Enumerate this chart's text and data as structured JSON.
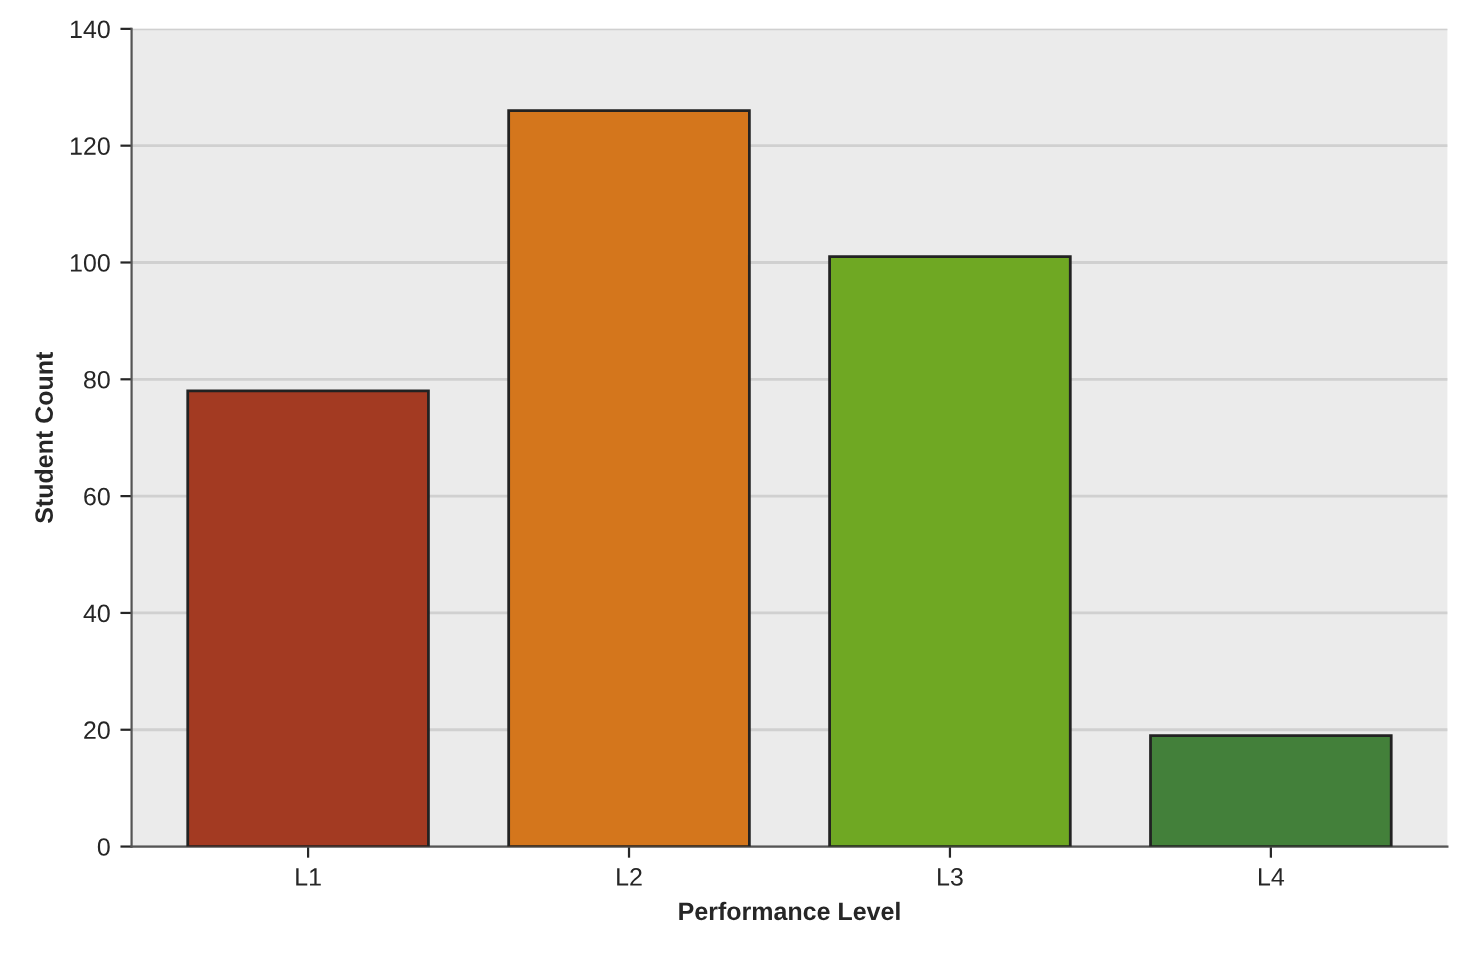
{
  "chart_data": {
    "type": "bar",
    "xlabel": "Performance Level",
    "ylabel": "Student Count",
    "categories": [
      "L1",
      "L2",
      "L3",
      "L4"
    ],
    "values": [
      78,
      126,
      101,
      19
    ],
    "colors": [
      "#a33a22",
      "#d4761c",
      "#6fa823",
      "#43803a"
    ],
    "ylim": [
      0,
      140
    ],
    "yticks": [
      0,
      20,
      40,
      60,
      80,
      100,
      120,
      140
    ],
    "grid": "y"
  }
}
